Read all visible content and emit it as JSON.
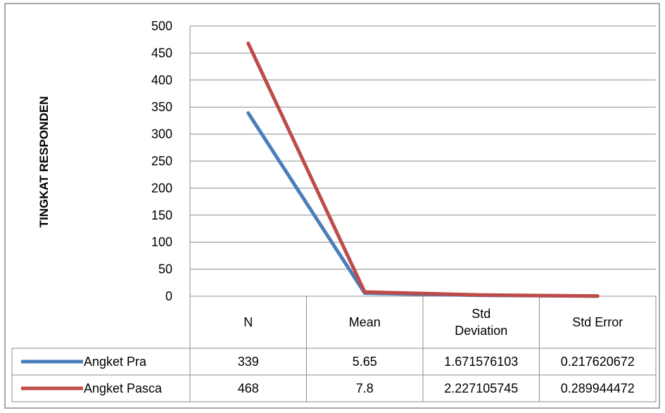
{
  "chart_data": {
    "type": "line",
    "title": "",
    "xlabel": "",
    "ylabel": "TINGKAT RESPONDEN",
    "ylim": [
      0,
      500
    ],
    "yticks": [
      0,
      50,
      100,
      150,
      200,
      250,
      300,
      350,
      400,
      450,
      500
    ],
    "grid": true,
    "legend": "data-table",
    "categories": [
      [
        "N"
      ],
      [
        "Mean"
      ],
      [
        "Std",
        "Deviation"
      ],
      [
        "Std Error"
      ]
    ],
    "series": [
      {
        "name": "Angket Pra",
        "color": "#4a7ebb",
        "values": [
          339,
          5.65,
          1.671576103,
          0.217620672
        ],
        "labels": [
          "339",
          "5.65",
          "1.671576103",
          "0.217620672"
        ]
      },
      {
        "name": "Angket Pasca",
        "color": "#be4b48",
        "values": [
          468,
          7.8,
          2.227105745,
          0.289944472
        ],
        "labels": [
          "468",
          "7.8",
          "2.227105745",
          "0.289944472"
        ]
      }
    ]
  }
}
